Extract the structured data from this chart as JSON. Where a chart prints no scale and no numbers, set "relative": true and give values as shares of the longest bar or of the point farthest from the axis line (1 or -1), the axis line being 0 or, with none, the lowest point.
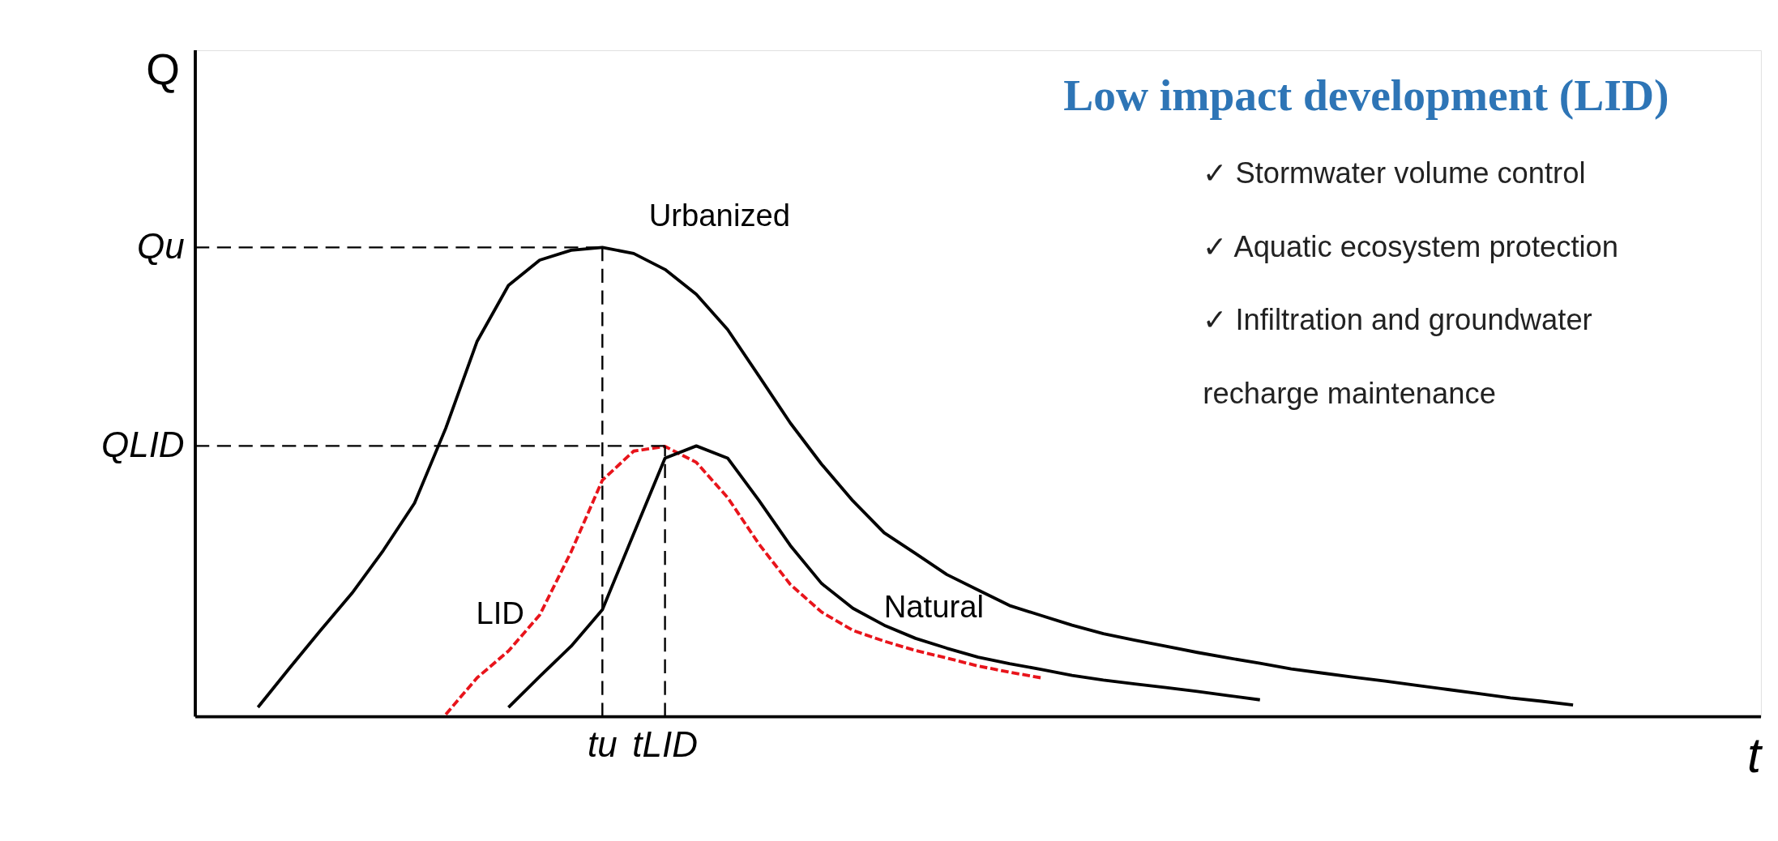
{
  "chart_data": {
    "type": "line",
    "relative": true,
    "title": "Low impact development (LID)",
    "xlabel": "t",
    "ylabel": "Q",
    "marker": "none",
    "categories": [
      null,
      null,
      null,
      null,
      null,
      null,
      null,
      null,
      null,
      null,
      null,
      null,
      null,
      "tu",
      null,
      "tLID",
      null,
      null,
      null,
      null,
      null,
      null,
      null,
      null,
      null,
      null,
      null,
      null,
      null,
      null,
      null,
      null,
      null,
      null,
      null,
      null,
      null,
      null,
      null,
      null,
      null,
      null,
      null,
      null,
      null,
      null,
      null,
      null,
      null,
      null,
      null
    ],
    "series": [
      {
        "name": "Urbanized",
        "color": "#000000",
        "line_style": "solid",
        "values": [
          null,
          null,
          0.02,
          0.103,
          0.184,
          0.263,
          0.354,
          0.455,
          0.615,
          0.8,
          0.919,
          0.973,
          0.994,
          1,
          0.987,
          0.953,
          0.9,
          0.825,
          0.726,
          0.626,
          0.538,
          0.46,
          0.392,
          0.348,
          0.303,
          0.27,
          0.237,
          0.216,
          0.195,
          0.177,
          0.163,
          0.15,
          0.137,
          0.125,
          0.114,
          0.102,
          0.093,
          0.084,
          0.076,
          0.067,
          0.058,
          0.049,
          0.04,
          0.033,
          0.025,
          null,
          null,
          null,
          null,
          null,
          null
        ]
      },
      {
        "name": "LID",
        "color": "#e8141b",
        "line_style": "dashed",
        "values": [
          null,
          null,
          null,
          null,
          null,
          null,
          null,
          null,
          0.005,
          0.083,
          0.14,
          0.217,
          0.351,
          0.504,
          0.566,
          0.576,
          0.542,
          0.467,
          0.368,
          0.282,
          0.223,
          0.184,
          0.161,
          0.141,
          0.125,
          0.108,
          0.095,
          0.083,
          null,
          null,
          null,
          null,
          null,
          null,
          null,
          null,
          null,
          null,
          null,
          null,
          null,
          null,
          null,
          null,
          null,
          null,
          null,
          null,
          null,
          null,
          null
        ]
      },
      {
        "name": "Natural",
        "color": "#000000",
        "line_style": "solid",
        "values": [
          null,
          null,
          null,
          null,
          null,
          null,
          null,
          null,
          null,
          null,
          0.02,
          0.086,
          0.15,
          0.228,
          0.39,
          0.551,
          0.577,
          0.551,
          0.461,
          0.365,
          0.284,
          0.231,
          0.195,
          0.167,
          0.146,
          0.127,
          0.113,
          0.101,
          0.088,
          0.078,
          0.07,
          0.062,
          0.054,
          0.045,
          0.036,
          null,
          null,
          null,
          null,
          null,
          null,
          null,
          null,
          null,
          null,
          null,
          null,
          null,
          null,
          null,
          null
        ]
      }
    ],
    "ref_lines": [
      {
        "axis": "y",
        "value": 1,
        "label": "Qu",
        "line_style": "dashed",
        "color": "#000000"
      },
      {
        "axis": "y",
        "value": 0.577,
        "label": "QLID",
        "line_style": "dashed",
        "color": "#000000"
      },
      {
        "axis": "x",
        "value": "tu",
        "line_style": "dashed",
        "color": "#000000"
      },
      {
        "axis": "x",
        "value": "tLID",
        "line_style": "dashed",
        "color": "#000000"
      }
    ],
    "annotations": [
      "✓  Stormwater volume control",
      "✓  Aquatic ecosystem protection",
      "✓  Infiltration and groundwater recharge maintenance"
    ]
  }
}
